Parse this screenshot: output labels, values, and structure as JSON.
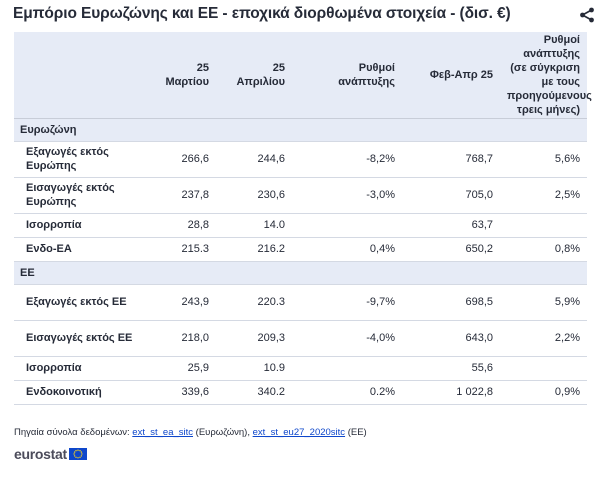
{
  "title": "Εμπόριο Ευρωζώνης και ΕΕ - εποχικά διορθωμένα στοιχεία - (δισ. €)",
  "share_icon": "share-icon",
  "columns": [
    "",
    "25 Μαρτίου",
    "25 Απριλίου",
    "Ρυθμοί ανάπτυξης",
    "Φεβ-Απρ 25",
    "Ρυθμοί ανάπτυξης (σε σύγκριση με τους προηγούμενους τρεις μήνες)"
  ],
  "groups": [
    {
      "name": "Ευρωζώνη",
      "rows": [
        {
          "label": "Εξαγωγές εκτός Ευρώπης",
          "mar": "266,6",
          "apr": "244,6",
          "growth": "-8,2%",
          "febapr": "768,7",
          "growth3m": "5,6%"
        },
        {
          "label": "Εισαγωγές εκτός Ευρώπης",
          "mar": "237,8",
          "apr": "230,6",
          "growth": "-3,0%",
          "febapr": "705,0",
          "growth3m": "2,5%"
        },
        {
          "label": "Ισορροπία",
          "mar": "28,8",
          "apr": "14.0",
          "growth": "",
          "febapr": "63,7",
          "growth3m": ""
        },
        {
          "label": "Ενδο-EA",
          "mar": "215.3",
          "apr": "216.2",
          "growth": "0,4%",
          "febapr": "650,2",
          "growth3m": "0,8%"
        }
      ]
    },
    {
      "name": "ΕΕ",
      "rows": [
        {
          "label": "Εξαγωγές εκτός ΕΕ",
          "mar": "243,9",
          "apr": "220.3",
          "growth": "-9,7%",
          "febapr": "698,5",
          "growth3m": "5,9%"
        },
        {
          "label": "Εισαγωγές εκτός ΕΕ",
          "mar": "218,0",
          "apr": "209,3",
          "growth": "-4,0%",
          "febapr": "643,0",
          "growth3m": "2,2%"
        },
        {
          "label": "Ισορροπία",
          "mar": "25,9",
          "apr": "10.9",
          "growth": "",
          "febapr": "55,6",
          "growth3m": ""
        },
        {
          "label": "Ενδοκοινοτική",
          "mar": "339,6",
          "apr": "340.2",
          "growth": "0.2%",
          "febapr": "1 022,8",
          "growth3m": "0,9%"
        }
      ]
    }
  ],
  "source": {
    "prefix": "Πηγαία σύνολα δεδομένων:",
    "link1": "ext_st_ea_sitc",
    "mid": "(Ευρωζώνη),",
    "link2": "ext_st_eu27_2020sitc",
    "suffix": "(ΕΕ)"
  },
  "logo": {
    "text": "eurostat",
    "flag_icon": "eu-flag-icon"
  },
  "colors": {
    "header_bg": "#e6ebf6",
    "link": "#0e47cb",
    "text": "#262b38",
    "flag_blue": "#0e47cb",
    "flag_star": "#ffd617"
  }
}
